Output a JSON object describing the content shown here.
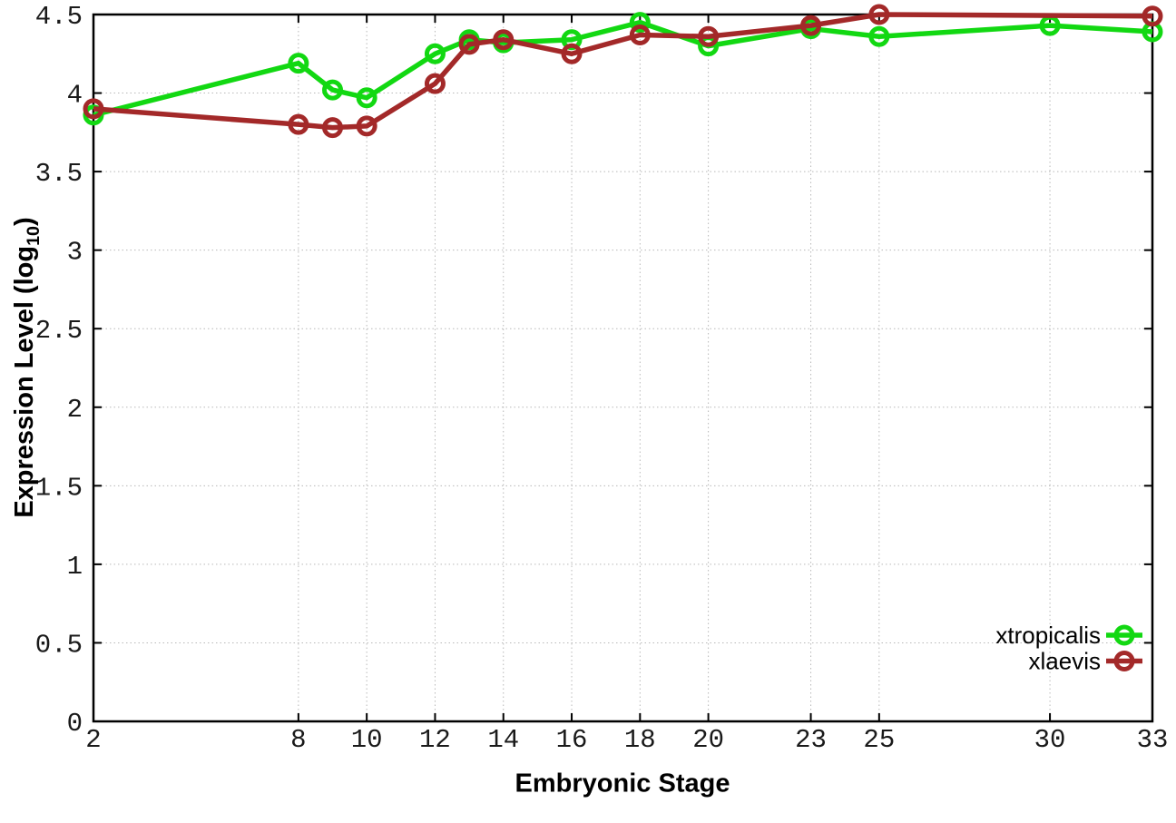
{
  "chart_data": {
    "type": "line",
    "title": "",
    "xlabel": "Embryonic Stage",
    "ylabel": "Expression Level (log10)",
    "ylabel_parts": {
      "main": "Expression Level (log",
      "sub": "10",
      "close": ")"
    },
    "xlim": [
      2,
      33
    ],
    "ylim": [
      0,
      4.5
    ],
    "x_ticks": [
      2,
      8,
      10,
      12,
      14,
      16,
      18,
      20,
      23,
      25,
      30,
      33
    ],
    "x_tick_labels": [
      "2",
      "8",
      "10",
      "12",
      "14",
      "16",
      "18",
      "20",
      "23",
      "25",
      "30",
      "33"
    ],
    "y_ticks": [
      0,
      0.5,
      1,
      1.5,
      2,
      2.5,
      3,
      3.5,
      4,
      4.5
    ],
    "y_tick_labels": [
      "0",
      "0.5",
      "1",
      "1.5",
      "2",
      "2.5",
      "3",
      "3.5",
      "4",
      "4.5"
    ],
    "grid": true,
    "legend_position": "bottom-right",
    "colors": {
      "border": "#000000",
      "gridline": "#b8b8b8",
      "background": "#ffffff"
    },
    "series": [
      {
        "name": "xtropicalis",
        "color": "#12d812",
        "marker": "open-circle",
        "x": [
          2,
          8,
          9,
          10,
          12,
          13,
          14,
          16,
          18,
          20,
          23,
          25,
          30,
          33
        ],
        "y": [
          3.86,
          4.19,
          4.02,
          3.97,
          4.25,
          4.34,
          4.32,
          4.34,
          4.45,
          4.3,
          4.41,
          4.36,
          4.43,
          4.39
        ]
      },
      {
        "name": "xlaevis",
        "color": "#a32929",
        "marker": "open-circle",
        "x": [
          2,
          8,
          9,
          10,
          12,
          13,
          14,
          16,
          18,
          20,
          23,
          25,
          33
        ],
        "y": [
          3.9,
          3.8,
          3.78,
          3.79,
          4.06,
          4.31,
          4.34,
          4.25,
          4.37,
          4.36,
          4.43,
          4.5,
          4.49
        ]
      }
    ]
  }
}
